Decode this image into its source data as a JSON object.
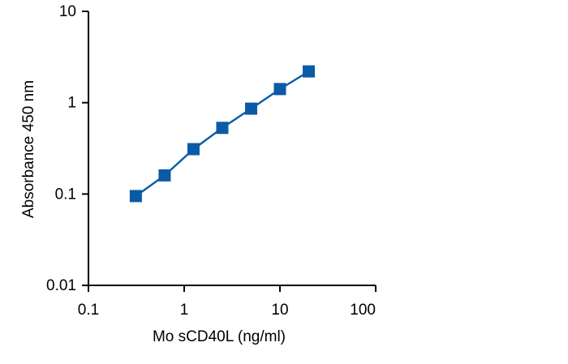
{
  "chart_data": {
    "type": "line",
    "title": "",
    "xlabel": "Mo sCD40L (ng/ml)",
    "ylabel": "Absorbance 450 nm",
    "xscale": "log",
    "yscale": "log",
    "xlim": [
      0.1,
      100
    ],
    "ylim": [
      0.01,
      10
    ],
    "xticks": [
      "0.1",
      "1",
      "10",
      "100"
    ],
    "yticks": [
      "0.01",
      "0.1",
      "1",
      "10"
    ],
    "grid": false,
    "legend": "none",
    "marker": "square",
    "series": [
      {
        "x": [
          0.3125,
          0.625,
          1.25,
          2.5,
          5,
          10,
          20
        ],
        "y": [
          0.095,
          0.16,
          0.31,
          0.53,
          0.86,
          1.41,
          2.2
        ]
      }
    ],
    "colors": {
      "series": "#0b5aa6",
      "axis": "#000000"
    }
  }
}
